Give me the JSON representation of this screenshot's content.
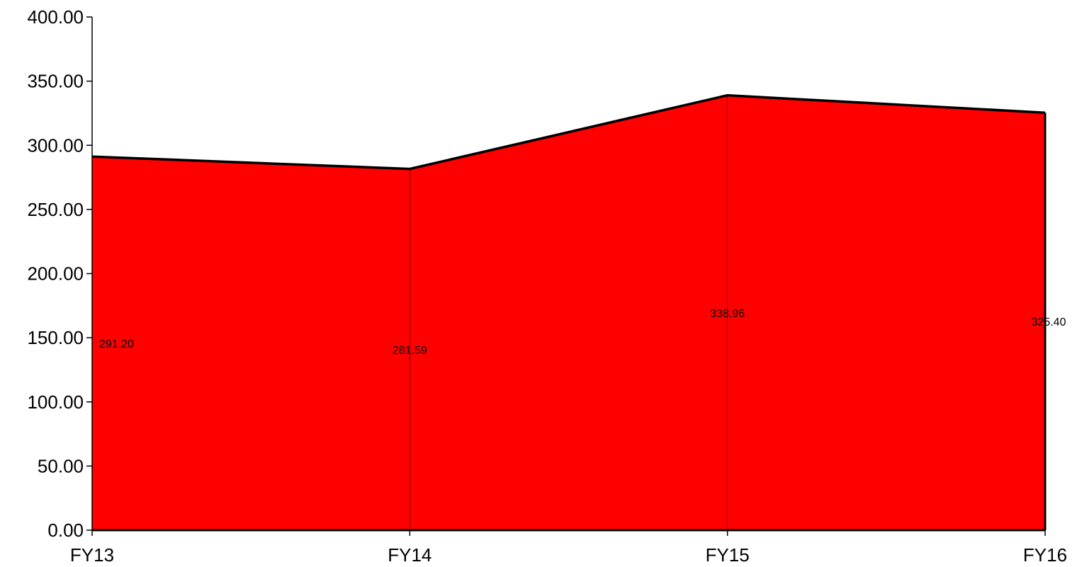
{
  "chart_data": {
    "type": "area",
    "categories": [
      "FY13",
      "FY14",
      "FY15",
      "FY16"
    ],
    "series": [
      {
        "values": [
          291.2,
          281.59,
          338.96,
          325.4
        ],
        "labels": [
          "291.20",
          "281.59",
          "338.96",
          "325.40"
        ],
        "color": "#ff0000",
        "line_color": "#000000"
      }
    ],
    "y_ticks": [
      "0.00",
      "50.00",
      "100.00",
      "150.00",
      "200.00",
      "250.00",
      "300.00",
      "350.00",
      "400.00"
    ],
    "ylim": [
      0,
      400
    ],
    "grid": false,
    "legend": "none",
    "title": "",
    "xlabel": "",
    "ylabel": ""
  }
}
